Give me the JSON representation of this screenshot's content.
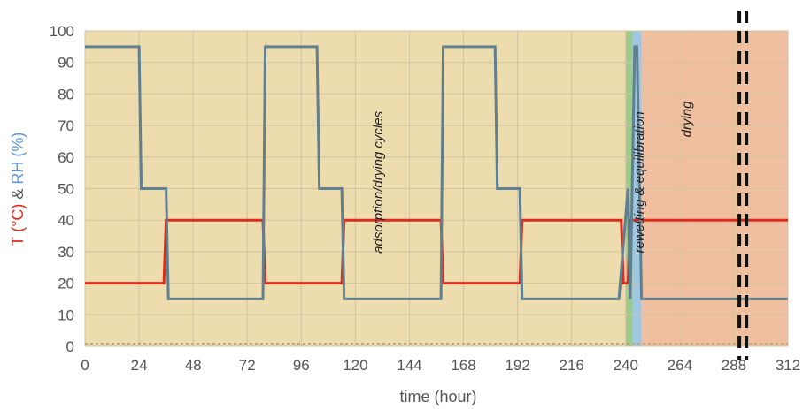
{
  "chart_data": {
    "type": "line",
    "title": "",
    "xlabel": "time (hour)",
    "ylabel_parts": [
      {
        "text": "T (°C)",
        "color": "#e02b1c"
      },
      {
        "text": " & ",
        "color": "#555555"
      },
      {
        "text": "RH (%)",
        "color": "#5b9bd5"
      }
    ],
    "xlim": [
      0,
      312
    ],
    "ylim": [
      0,
      100
    ],
    "x_ticks": [
      0,
      24,
      48,
      72,
      96,
      120,
      144,
      168,
      192,
      216,
      240,
      264,
      288,
      312
    ],
    "y_ticks": [
      0,
      10,
      20,
      30,
      40,
      50,
      60,
      70,
      80,
      90,
      100
    ],
    "grid": true,
    "regions": [
      {
        "name": "adsorption/drying cycles",
        "x": [
          0,
          240
        ],
        "color": "#ecdcae"
      },
      {
        "name": "rewetting & equilibration",
        "x": [
          240,
          247
        ],
        "color": "#9dcb8a"
      },
      {
        "name": "rewetting band inner",
        "x": [
          243,
          247
        ],
        "color": "#9fc7e4"
      },
      {
        "name": "drying",
        "x": [
          247,
          312
        ],
        "color": "#efbf9f"
      }
    ],
    "annotations": [
      {
        "text": "adsorption/drying cycles",
        "x": 132,
        "y": 52
      },
      {
        "text": "rewetting & equilibration",
        "x": 248,
        "y": 52
      },
      {
        "text": "drying",
        "x": 269,
        "y": 72
      }
    ],
    "series": [
      {
        "color": "#e02b1c",
        "x": [
          0,
          35,
          36,
          79,
          80,
          114,
          115,
          158,
          159,
          193,
          194,
          238,
          239,
          241,
          242,
          246,
          247,
          312
        ],
        "y": [
          20,
          20,
          40,
          40,
          20,
          20,
          40,
          40,
          20,
          20,
          40,
          40,
          20,
          20,
          40,
          40,
          40,
          40
        ]
      },
      {
        "color": "#607f8f",
        "x": [
          0,
          24,
          25,
          36,
          37,
          79,
          80,
          103,
          104,
          114,
          115,
          158,
          159,
          182,
          183,
          193,
          194,
          236,
          237,
          241,
          242,
          244,
          245,
          247,
          248,
          312
        ],
        "y": [
          95,
          95,
          50,
          50,
          15,
          15,
          95,
          95,
          50,
          50,
          15,
          15,
          95,
          95,
          50,
          50,
          15,
          15,
          15,
          50,
          15,
          95,
          95,
          15,
          15,
          15
        ]
      }
    ],
    "reference_lines": [
      {
        "x": 1.5,
        "from": 0,
        "to": 100
      },
      {
        "x": 4,
        "from": 0,
        "to": 100
      }
    ]
  }
}
